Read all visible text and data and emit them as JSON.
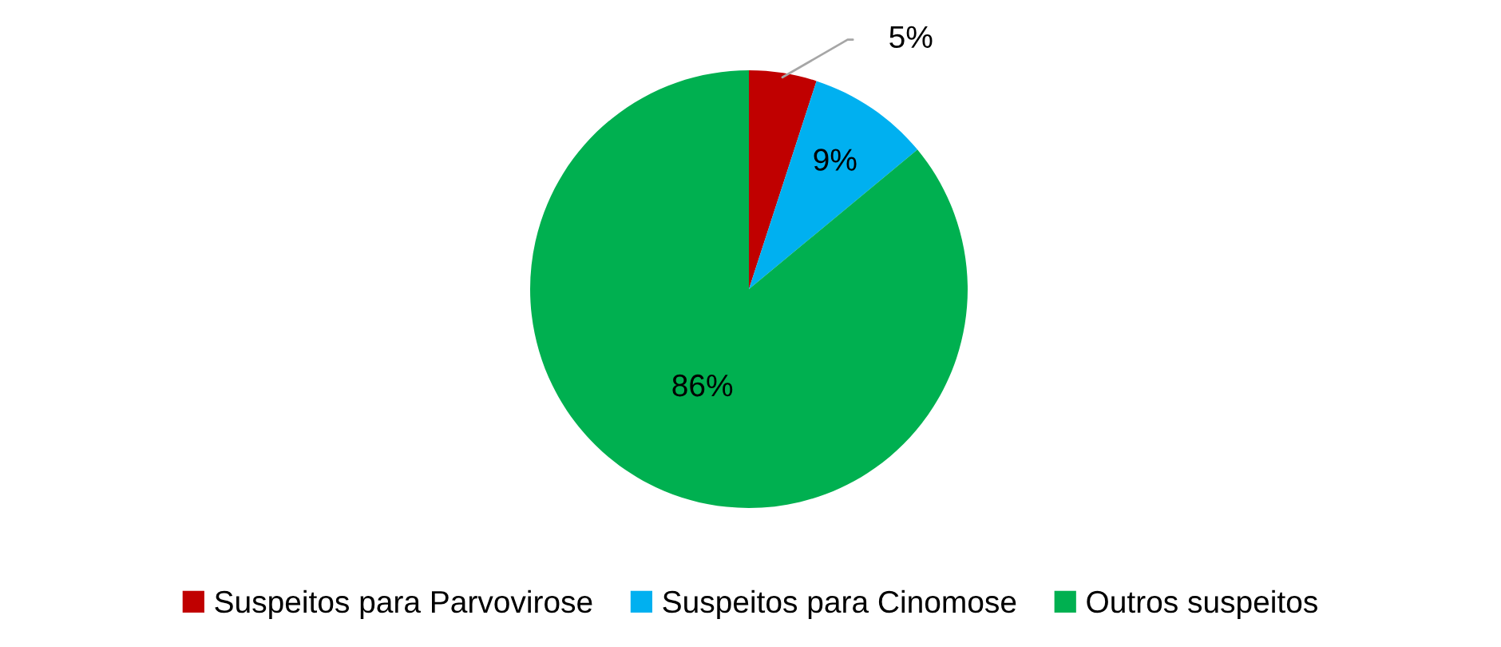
{
  "chart_data": {
    "type": "pie",
    "categories": [
      "Suspeitos para Parvovirose",
      "Suspeitos para Cinomose",
      "Outros suspeitos"
    ],
    "values": [
      5,
      9,
      86
    ],
    "colors": [
      "#c00000",
      "#00b0f0",
      "#00b050"
    ],
    "value_labels": [
      "5%",
      "9%",
      "86%"
    ],
    "legend": "bottom"
  }
}
